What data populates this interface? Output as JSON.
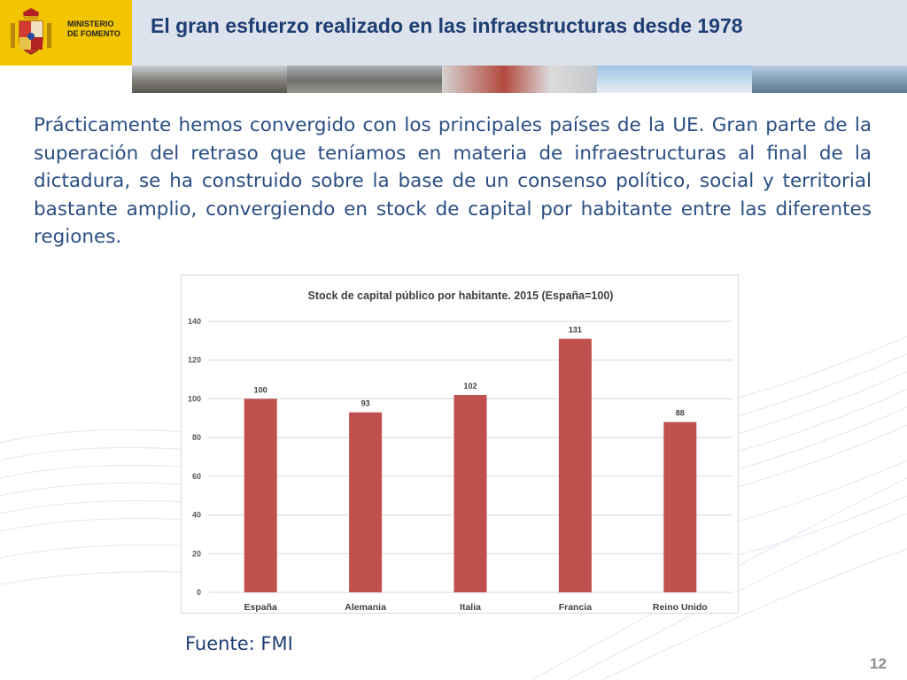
{
  "header": {
    "ministry_line1": "Ministerio",
    "ministry_line2": "de Fomento",
    "title": "El gran esfuerzo realizado en las infraestructuras desde 1978",
    "crest_icon": "coat-of-arms-icon",
    "logo_color": "#f2c500",
    "title_color": "#1e3d73"
  },
  "body": {
    "paragraph": "Prácticamente hemos convergido con los principales países de la UE. Gran parte de la superación del retraso que teníamos en materia de infraestructuras al final de la dictadura, se ha construido sobre la base de un consenso político, social y territorial bastante amplio, convergiendo en stock de capital por habitante entre las diferentes regiones.",
    "text_color": "#2a4e84"
  },
  "chart_data": {
    "type": "bar",
    "title": "Stock de capital público por habitante. 2015 (España=100)",
    "categories": [
      "España",
      "Alemania",
      "Italia",
      "Francia",
      "Reino Unido"
    ],
    "values": [
      100,
      93,
      102,
      131,
      88
    ],
    "xlabel": "",
    "ylabel": "",
    "ylim": [
      0,
      140
    ],
    "yticks": [
      0,
      20,
      40,
      60,
      80,
      100,
      120,
      140
    ],
    "grid": true,
    "data_labels": true,
    "bar_color": "#c0504d"
  },
  "footer": {
    "source": "Fuente: FMI",
    "page_number": "12"
  }
}
